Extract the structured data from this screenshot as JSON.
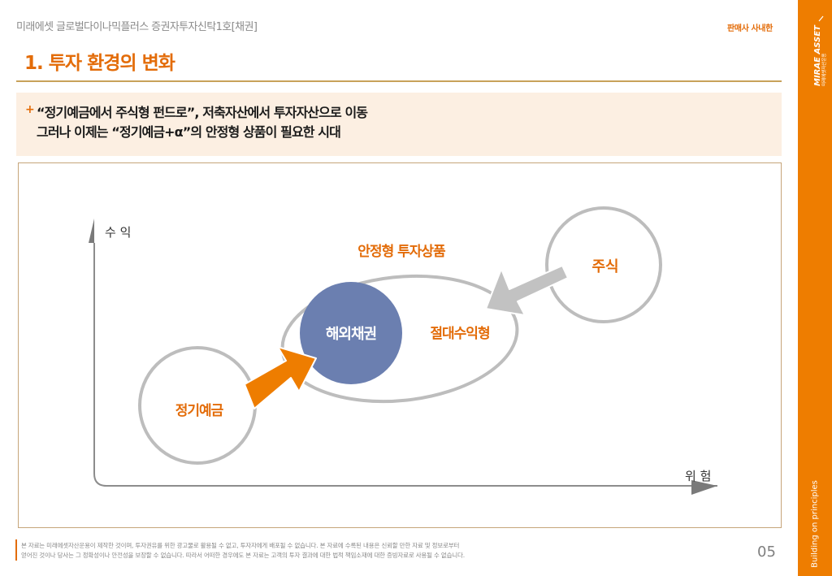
{
  "header": {
    "fund_name": "미래에셋 글로벌다이나믹플러스 증권자투자신탁1호[채권]",
    "tag": "판매사 사내한"
  },
  "section_title": "1. 투자 환경의 변화",
  "headline": {
    "bullet": "+",
    "line1": "“정기예금에서 주식형 펀드로”, 저축자산에서 투자자산으로 이동",
    "line2": "그러나 이제는 “정기예금+α”의 안정형 상품이 필요한 시대"
  },
  "diagram": {
    "y_axis_label": "수 익",
    "x_axis_label": "위 험",
    "group_label": "안정형  투자상품",
    "bubble_deposit": "정기예금",
    "bubble_overseas_bonds": "해외채권",
    "label_absolute_return": "절대수익형",
    "bubble_stocks": "주식",
    "colors": {
      "accent_orange": "#e36c09",
      "bond_blue": "#6b7fb0",
      "arrow_gray": "#c2c2c2",
      "outline_gray": "#bdbdbd"
    }
  },
  "disclaimer": {
    "line1": "본 자료는 미래에셋자산운용이 제작한 것이며, 투자권유를 위한 광고물로 활용될 수 없고, 투자자에게 배포될 수 없습니다. 본 자료에 수록된 내용은 신뢰할 만한 자료 및 정보로부터",
    "line2": "얻어진 것이나 당사는 그 정확성이나 안전성을 보장할 수 없습니다. 따라서 어떠한 경우에도 본 자료는 고객의 투자 결과에 대한 법적 책임소재에 대한 증빙자료로 사용될 수 없습니다."
  },
  "page_number": "05",
  "side_band": {
    "logo_text": "MIRAE ASSET",
    "logo_subtext": "미래에셋자산운용",
    "slogan": "Building on principles"
  }
}
